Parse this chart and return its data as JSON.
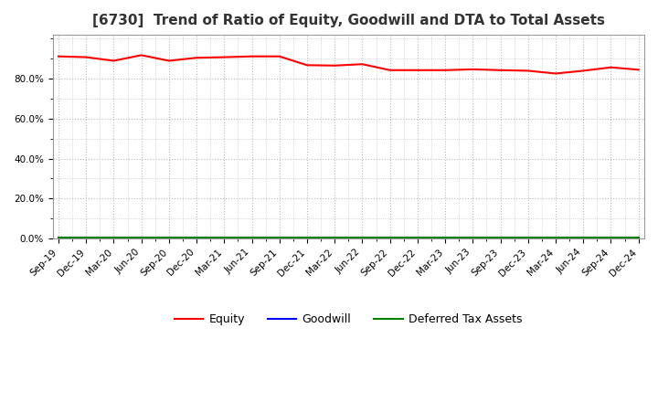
{
  "title": "[6730]  Trend of Ratio of Equity, Goodwill and DTA to Total Assets",
  "x_labels": [
    "Sep-19",
    "Dec-19",
    "Mar-20",
    "Jun-20",
    "Sep-20",
    "Dec-20",
    "Mar-21",
    "Jun-21",
    "Sep-21",
    "Dec-21",
    "Mar-22",
    "Jun-22",
    "Sep-22",
    "Dec-22",
    "Mar-23",
    "Jun-23",
    "Sep-23",
    "Dec-23",
    "Mar-24",
    "Jun-24",
    "Sep-24",
    "Dec-24"
  ],
  "equity": [
    0.912,
    0.908,
    0.89,
    0.918,
    0.89,
    0.905,
    0.908,
    0.912,
    0.912,
    0.868,
    0.866,
    0.873,
    0.843,
    0.843,
    0.843,
    0.847,
    0.843,
    0.84,
    0.826,
    0.84,
    0.857,
    0.845
  ],
  "goodwill": [
    0.002,
    0.002,
    0.002,
    0.002,
    0.002,
    0.002,
    0.002,
    0.002,
    0.002,
    0.002,
    0.002,
    0.002,
    0.002,
    0.002,
    0.002,
    0.002,
    0.002,
    0.002,
    0.002,
    0.002,
    0.002,
    0.002
  ],
  "dta": [
    0.005,
    0.005,
    0.005,
    0.005,
    0.005,
    0.005,
    0.005,
    0.005,
    0.005,
    0.005,
    0.005,
    0.005,
    0.005,
    0.005,
    0.005,
    0.005,
    0.005,
    0.005,
    0.005,
    0.005,
    0.005,
    0.005
  ],
  "equity_color": "#ff0000",
  "goodwill_color": "#0000ff",
  "dta_color": "#008000",
  "background_color": "#ffffff",
  "plot_bg_color": "#ffffff",
  "grid_color": "#bbbbbb",
  "ylim_min": 0.0,
  "ylim_max": 1.02,
  "yticks": [
    0.0,
    0.2,
    0.4,
    0.6,
    0.8
  ],
  "title_fontsize": 11,
  "tick_fontsize": 7.5,
  "legend_labels": [
    "Equity",
    "Goodwill",
    "Deferred Tax Assets"
  ]
}
